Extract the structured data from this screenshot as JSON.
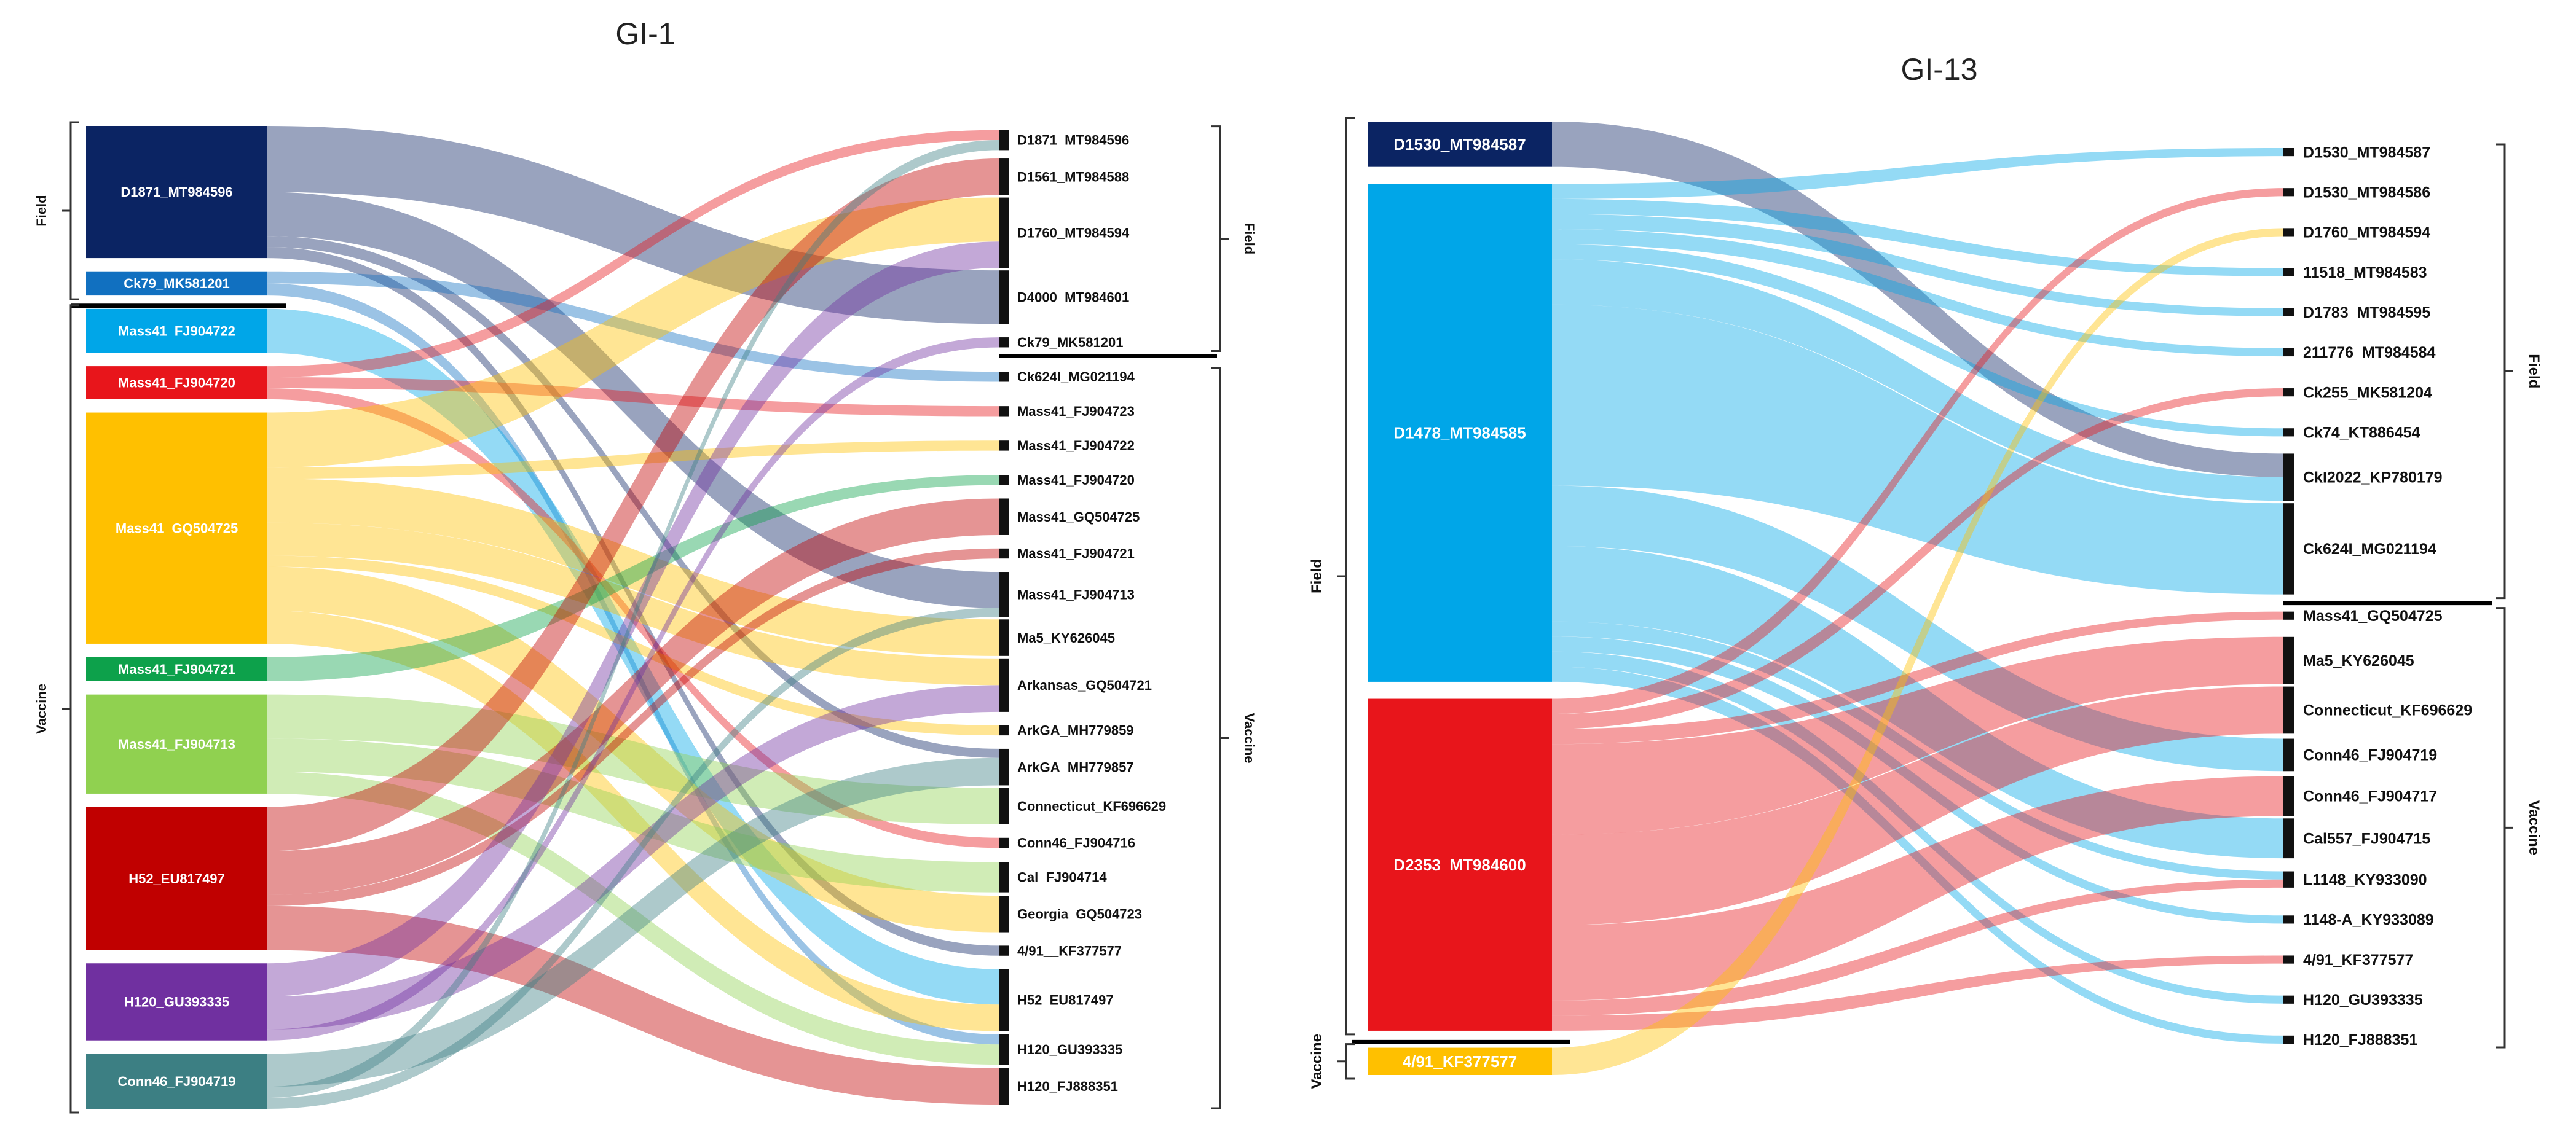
{
  "colors": {
    "navy": "#0b2463",
    "blue": "#1170c0",
    "sky": "#00a6e8",
    "red": "#e8151b",
    "amber": "#ffc000",
    "green": "#0da14b",
    "lime": "#90d150",
    "darkred": "#c00000",
    "purple": "#7030a0",
    "teal": "#3c7f83",
    "bracket": "#333333"
  },
  "gi1": {
    "title": "GI-1",
    "left_groups": [
      {
        "label": "Field",
        "items": [
          "D1871_MT984596",
          "Ck79_MK581201"
        ]
      },
      {
        "label": "Vaccine",
        "items": [
          "Mass41_FJ904722",
          "Mass41_FJ904720",
          "Mass41_GQ504725",
          "Mass41_FJ904721",
          "Mass41_FJ904713",
          "H52_EU817497",
          "H120_GU393335",
          "Conn46_FJ904719"
        ]
      }
    ],
    "sources": [
      {
        "label": "D1871_MT984596",
        "color": "navy"
      },
      {
        "label": "Ck79_MK581201",
        "color": "blue"
      },
      {
        "label": "Mass41_FJ904722",
        "color": "sky"
      },
      {
        "label": "Mass41_FJ904720",
        "color": "red"
      },
      {
        "label": "Mass41_GQ504725",
        "color": "amber"
      },
      {
        "label": "Mass41_FJ904721",
        "color": "green"
      },
      {
        "label": "Mass41_FJ904713",
        "color": "lime"
      },
      {
        "label": "H52_EU817497",
        "color": "darkred"
      },
      {
        "label": "H120_GU393335",
        "color": "purple"
      },
      {
        "label": "Conn46_FJ904719",
        "color": "teal"
      }
    ],
    "targets": [
      "D1871_MT984596",
      "D1561_MT984588",
      "D1760_MT984594",
      "D4000_MT984601",
      "Ck79_MK581201",
      "Ck624I_MG021194",
      "Mass41_FJ904723",
      "Mass41_FJ904722",
      "Mass41_FJ904720",
      "Mass41_GQ504725",
      "Mass41_FJ904721",
      "Mass41_FJ904713",
      "Ma5_KY626045",
      "Arkansas_GQ504721",
      "ArkGA_MH779859",
      "ArkGA_MH779857",
      "Connecticut_KF696629",
      "Conn46_FJ904716",
      "Cal_FJ904714",
      "Georgia_GQ504723",
      "4/91__KF377577",
      "H52_EU817497",
      "H120_GU393335",
      "H120_FJ888351"
    ],
    "right_groups": [
      {
        "label": "Field",
        "items": [
          "D1871_MT984596",
          "D1561_MT984588",
          "D1760_MT984594",
          "D4000_MT984601",
          "Ck79_MK581201"
        ]
      },
      {
        "label": "Vaccine",
        "items": [
          "Ck624I_MG021194",
          "Mass41_FJ904723",
          "Mass41_FJ904722",
          "Mass41_FJ904720",
          "Mass41_GQ504725",
          "Mass41_FJ904721",
          "Mass41_FJ904713",
          "Ma5_KY626045",
          "Arkansas_GQ504721",
          "ArkGA_MH779859",
          "ArkGA_MH779857",
          "Connecticut_KF696629",
          "Conn46_FJ904716",
          "Cal_FJ904714",
          "Georgia_GQ504723",
          "4/91__KF377577",
          "H52_EU817497",
          "H120_GU393335",
          "H120_FJ888351"
        ]
      }
    ],
    "flows": [
      [
        "D1871_MT984596",
        "D4000_MT984601",
        6
      ],
      [
        "D1871_MT984596",
        "Mass41_FJ904713",
        4
      ],
      [
        "D1871_MT984596",
        "ArkGA_MH779857",
        1
      ],
      [
        "D1871_MT984596",
        "4/91__KF377577",
        1
      ],
      [
        "Ck79_MK581201",
        "Ck624I_MG021194",
        1
      ],
      [
        "Ck79_MK581201",
        "H120_GU393335",
        1
      ],
      [
        "Mass41_FJ904722",
        "H52_EU817497",
        4
      ],
      [
        "Mass41_FJ904720",
        "D1871_MT984596",
        1
      ],
      [
        "Mass41_FJ904720",
        "Mass41_FJ904723",
        1
      ],
      [
        "Mass41_FJ904720",
        "Conn46_FJ904716",
        1
      ],
      [
        "Mass41_GQ504725",
        "D1760_MT984594",
        5
      ],
      [
        "Mass41_GQ504725",
        "Mass41_FJ904722",
        1
      ],
      [
        "Mass41_GQ504725",
        "Ma5_KY626045",
        4
      ],
      [
        "Mass41_GQ504725",
        "Arkansas_GQ504721",
        3
      ],
      [
        "Mass41_GQ504725",
        "ArkGA_MH779859",
        1
      ],
      [
        "Mass41_GQ504725",
        "Georgia_GQ504723",
        4
      ],
      [
        "Mass41_GQ504725",
        "H52_EU817497",
        3
      ],
      [
        "Mass41_FJ904721",
        "Mass41_FJ904720",
        1
      ],
      [
        "Mass41_FJ904713",
        "Connecticut_KF696629",
        4
      ],
      [
        "Mass41_FJ904713",
        "Cal_FJ904714",
        3
      ],
      [
        "Mass41_FJ904713",
        "H120_GU393335",
        2
      ],
      [
        "H52_EU817497",
        "D1561_MT984588",
        4
      ],
      [
        "H52_EU817497",
        "Mass41_GQ504725",
        4
      ],
      [
        "H52_EU817497",
        "Mass41_FJ904721",
        1
      ],
      [
        "H52_EU817497",
        "H120_FJ888351",
        4
      ],
      [
        "H120_GU393335",
        "D1760_MT984594",
        3
      ],
      [
        "H120_GU393335",
        "Arkansas_GQ504721",
        3
      ],
      [
        "H120_GU393335",
        "Ck79_MK581201",
        1
      ],
      [
        "Conn46_FJ904719",
        "ArkGA_MH779857",
        3
      ],
      [
        "Conn46_FJ904719",
        "D1871_MT984596",
        1
      ],
      [
        "Conn46_FJ904719",
        "Mass41_FJ904713",
        1
      ]
    ]
  },
  "gi13": {
    "title": "GI-13",
    "left_groups": [
      {
        "label": "Field",
        "items": [
          "D1530_MT984587",
          "D1478_MT984585",
          "D2353_MT984600"
        ]
      },
      {
        "label": "Vaccine",
        "items": [
          "4/91_KF377577"
        ]
      }
    ],
    "sources": [
      {
        "label": "D1530_MT984587",
        "color": "navy"
      },
      {
        "label": "D1478_MT984585",
        "color": "sky"
      },
      {
        "label": "D2353_MT984600",
        "color": "red"
      },
      {
        "label": "4/91_KF377577",
        "color": "amber"
      }
    ],
    "targets": [
      "D1530_MT984587",
      "D1530_MT984586",
      "D1760_MT984594",
      "11518_MT984583",
      "D1783_MT984595",
      "211776_MT984584",
      "Ck255_MK581204",
      "Ck74_KT886454",
      "CkI2022_KP780179",
      "Ck624I_MG021194",
      "Mass41_GQ504725",
      "Ma5_KY626045",
      "Connecticut_KF696629",
      "Conn46_FJ904719",
      "Conn46_FJ904717",
      "Cal557_FJ904715",
      "L1148_KY933090",
      "1148-A_KY933089",
      "4/91_KF377577",
      "H120_GU393335",
      "H120_FJ888351"
    ],
    "right_groups": [
      {
        "label": "Field",
        "items": [
          "D1530_MT984587",
          "D1530_MT984586",
          "D1760_MT984594",
          "11518_MT984583",
          "D1783_MT984595",
          "211776_MT984584",
          "Ck255_MK581204",
          "Ck74_KT886454",
          "CkI2022_KP780179",
          "Ck624I_MG021194"
        ]
      },
      {
        "label": "Vaccine",
        "items": [
          "Mass41_GQ504725",
          "Ma5_KY626045",
          "Connecticut_KF696629",
          "Conn46_FJ904719",
          "Conn46_FJ904717",
          "Cal557_FJ904715",
          "L1148_KY933090",
          "1148-A_KY933089",
          "4/91_KF377577",
          "H120_GU393335",
          "H120_FJ888351"
        ]
      }
    ],
    "flows": [
      [
        "D1530_MT984587",
        "CkI2022_KP780179",
        3
      ],
      [
        "D1478_MT984585",
        "D1530_MT984587",
        1
      ],
      [
        "D1478_MT984585",
        "11518_MT984583",
        1
      ],
      [
        "D1478_MT984585",
        "D1783_MT984595",
        1
      ],
      [
        "D1478_MT984585",
        "211776_MT984584",
        1
      ],
      [
        "D1478_MT984585",
        "Ck74_KT886454",
        1
      ],
      [
        "D1478_MT984585",
        "CkI2022_KP780179",
        3
      ],
      [
        "D1478_MT984585",
        "Ck624I_MG021194",
        12
      ],
      [
        "D1478_MT984585",
        "Conn46_FJ904719",
        4
      ],
      [
        "D1478_MT984585",
        "Cal557_FJ904715",
        5
      ],
      [
        "D1478_MT984585",
        "L1148_KY933090",
        1
      ],
      [
        "D1478_MT984585",
        "1148-A_KY933089",
        1
      ],
      [
        "D1478_MT984585",
        "H120_GU393335",
        1
      ],
      [
        "D1478_MT984585",
        "H120_FJ888351",
        1
      ],
      [
        "D2353_MT984600",
        "D1530_MT984586",
        1
      ],
      [
        "D2353_MT984600",
        "Ck255_MK581204",
        1
      ],
      [
        "D2353_MT984600",
        "Mass41_GQ504725",
        1
      ],
      [
        "D2353_MT984600",
        "Ma5_KY626045",
        6
      ],
      [
        "D2353_MT984600",
        "Connecticut_KF696629",
        6
      ],
      [
        "D2353_MT984600",
        "Conn46_FJ904717",
        5
      ],
      [
        "D2353_MT984600",
        "L1148_KY933090",
        1
      ],
      [
        "D2353_MT984600",
        "4/91_KF377577",
        1
      ],
      [
        "4/91_KF377577",
        "D1760_MT984594",
        1
      ]
    ]
  }
}
